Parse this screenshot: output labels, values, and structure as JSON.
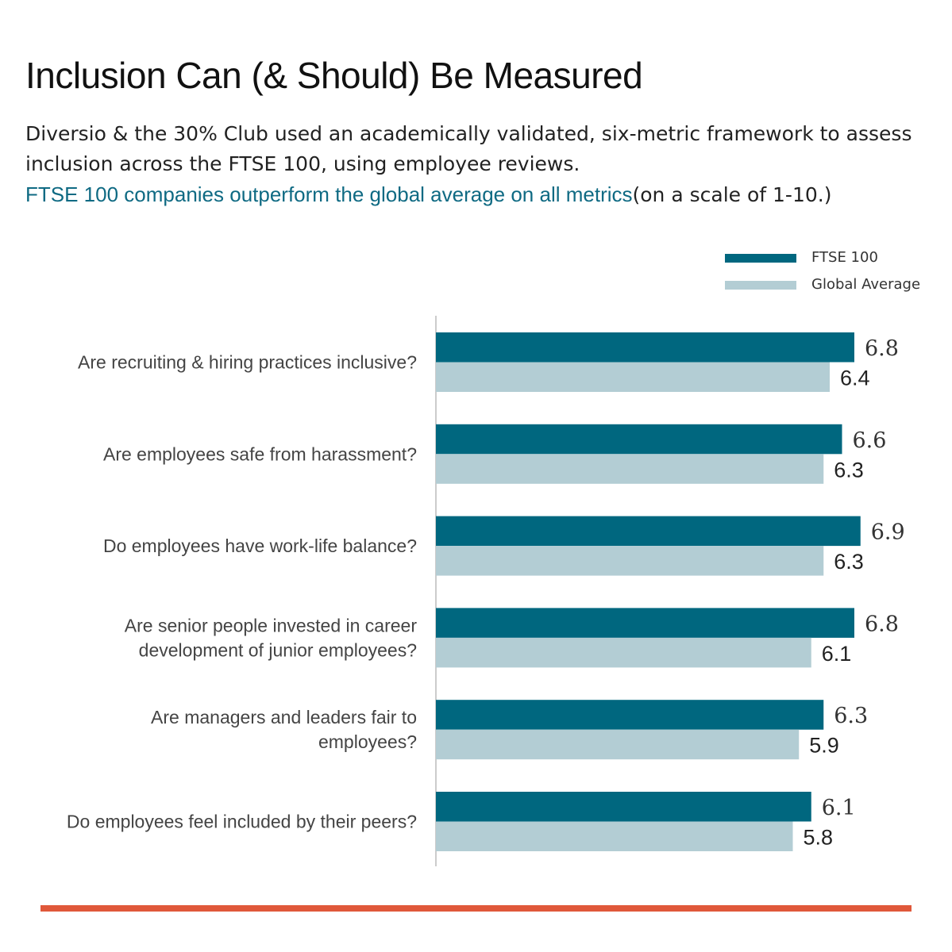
{
  "header": {
    "title": "Inclusion Can (& Should) Be Measured",
    "subtitle_part1": "Diversio & the 30% Club used an academically validated, six-metric framework to assess inclusion across the FTSE 100, using employee reviews.",
    "subtitle_highlight": "FTSE 100 companies outperform the global average on all metrics",
    "subtitle_part2": "(on a scale of 1-10.)"
  },
  "colors": {
    "ftse": "#00677f",
    "global": "#b3cdd4",
    "highlight_text": "#0f6a83",
    "axis": "#cccccc",
    "bottom_rule": "#e0583a"
  },
  "chart_data": {
    "type": "bar",
    "orientation": "horizontal",
    "categories": [
      "Are recruiting & hiring practices inclusive?",
      "Are employees safe from harassment?",
      "Do employees have work-life balance?",
      "Are senior people invested in career development of junior employees?",
      "Are managers and leaders fair to employees?",
      "Do employees feel included by their peers?"
    ],
    "series": [
      {
        "name": "FTSE 100",
        "values": [
          6.8,
          6.6,
          6.9,
          6.8,
          6.3,
          6.1
        ],
        "color": "#00677f"
      },
      {
        "name": "Global Average",
        "values": [
          6.4,
          6.3,
          6.3,
          6.1,
          5.9,
          5.8
        ],
        "color": "#b3cdd4"
      }
    ],
    "xlim": [
      0,
      10
    ],
    "grid": false,
    "legend_position": "top-right"
  }
}
